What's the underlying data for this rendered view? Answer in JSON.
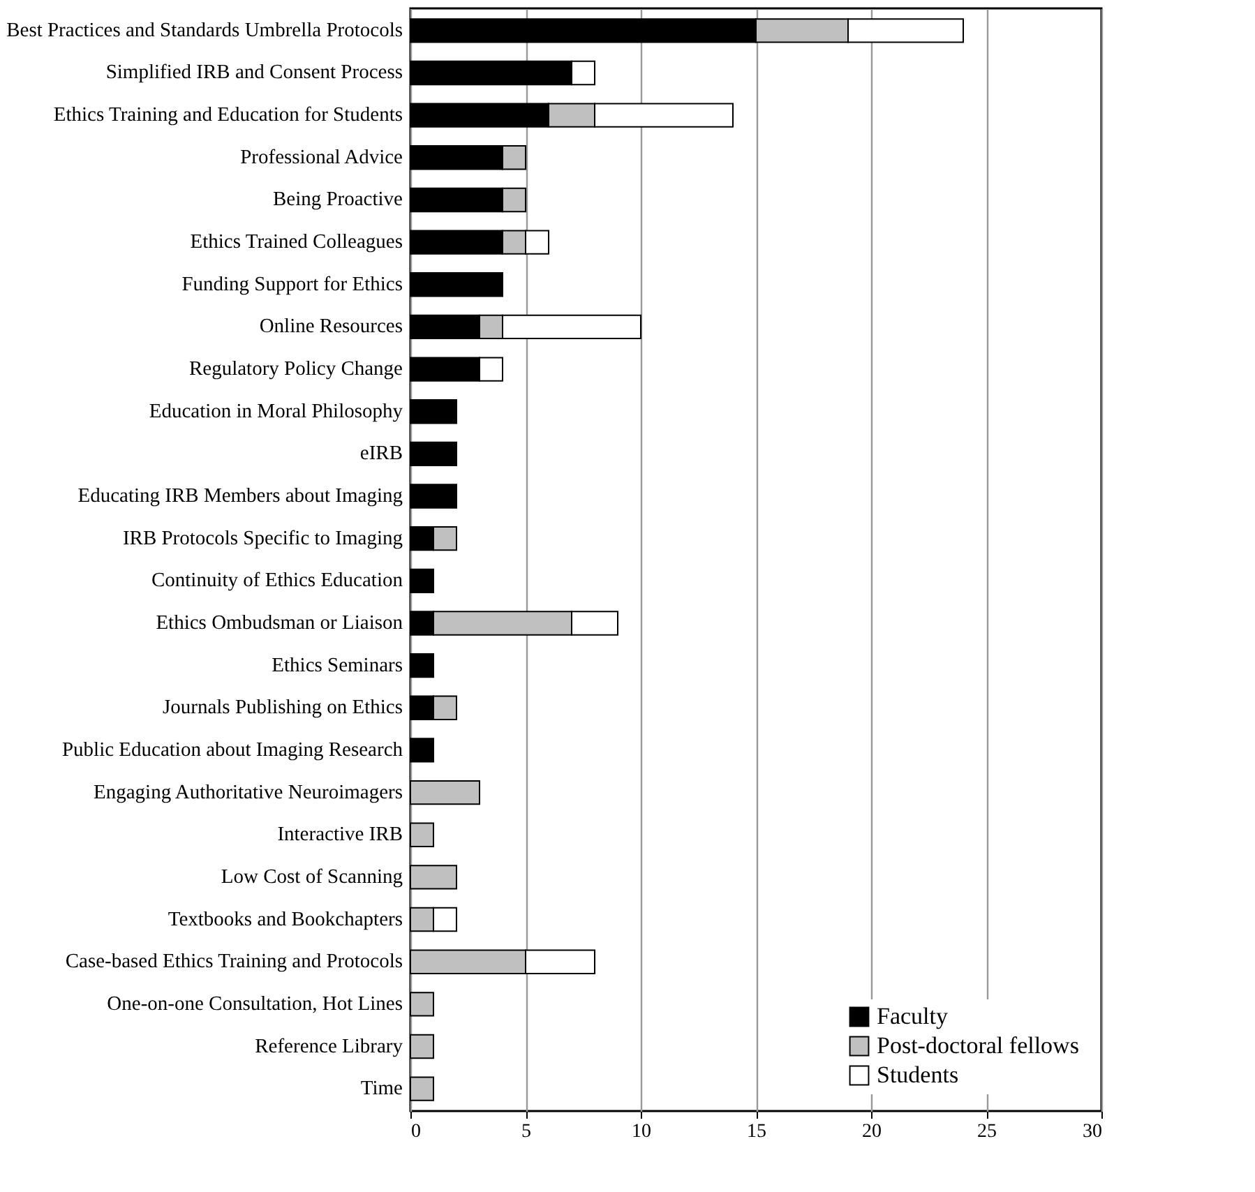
{
  "chart_data": {
    "type": "bar",
    "orientation": "horizontal",
    "stacked": true,
    "categories": [
      "Best Practices and Standards Umbrella Protocols",
      "Simplified IRB and Consent Process",
      "Ethics Training and Education for Students",
      "Professional Advice",
      "Being Proactive",
      "Ethics Trained Colleagues",
      "Funding Support for Ethics",
      "Online Resources",
      "Regulatory Policy Change",
      "Education in Moral Philosophy",
      "eIRB",
      "Educating IRB Members about Imaging",
      "IRB Protocols Specific to Imaging",
      "Continuity of Ethics Education",
      "Ethics Ombudsman or Liaison",
      "Ethics Seminars",
      "Journals Publishing on Ethics",
      "Public Education about Imaging Research",
      "Engaging Authoritative Neuroimagers",
      "Interactive IRB",
      "Low Cost of Scanning",
      "Textbooks and Bookchapters",
      "Case-based Ethics Training and Protocols",
      "One-on-one Consultation, Hot Lines",
      "Reference Library",
      "Time"
    ],
    "series": [
      {
        "name": "Faculty",
        "color": "#000000",
        "values": [
          15,
          7,
          6,
          4,
          4,
          4,
          4,
          3,
          3,
          2,
          2,
          2,
          1,
          1,
          1,
          1,
          1,
          1,
          null,
          null,
          null,
          null,
          null,
          null,
          null,
          null
        ]
      },
      {
        "name": "Post-doctoral fellows",
        "color": "#c0c0c0",
        "values": [
          4,
          null,
          2,
          1,
          1,
          1,
          null,
          1,
          null,
          null,
          null,
          null,
          1,
          null,
          6,
          null,
          1,
          null,
          3,
          1,
          2,
          1,
          5,
          1,
          1,
          1
        ]
      },
      {
        "name": "Students",
        "color": "#ffffff",
        "values": [
          5,
          1,
          6,
          null,
          null,
          1,
          null,
          6,
          1,
          null,
          null,
          null,
          null,
          null,
          2,
          null,
          null,
          null,
          null,
          null,
          null,
          1,
          3,
          null,
          null,
          null
        ]
      }
    ],
    "xlim": [
      0,
      30
    ],
    "xticks": [
      0,
      5,
      10,
      15,
      20,
      25,
      30
    ],
    "grid": "x",
    "legend": "bottom right"
  }
}
